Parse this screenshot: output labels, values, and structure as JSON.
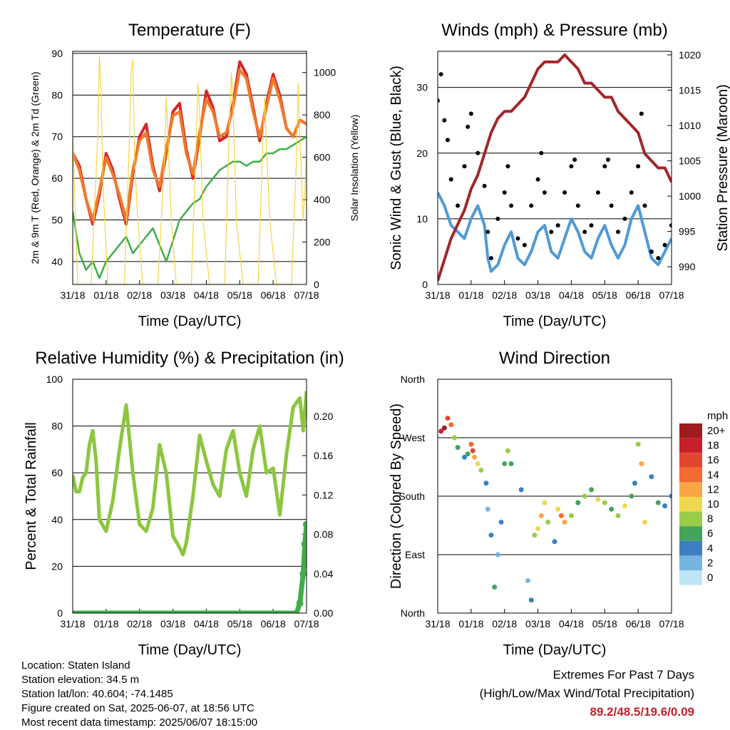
{
  "chart_data": [
    {
      "type": "line",
      "title": "Temperature (F)",
      "xlabel": "Time (Day/UTC)",
      "ylabel": "2m & 9m T (Red, Orange) & 2m Td (Green)",
      "y2label": "Solar Insolation (Yellow)",
      "x_ticks": [
        "31/18",
        "01/18",
        "02/18",
        "03/18",
        "04/18",
        "05/18",
        "06/18",
        "07/18"
      ],
      "ylim": [
        34.5,
        90.5
      ],
      "y_ticks": [
        40,
        50,
        60,
        70,
        80,
        90
      ],
      "y2lim": [
        0,
        1100
      ],
      "y2_ticks": [
        0,
        200,
        400,
        600,
        800,
        1000
      ],
      "grid": true,
      "series": [
        {
          "name": "2m T",
          "color": "#d7262b",
          "axis": "left",
          "x": [
            0,
            0.2,
            0.4,
            0.6,
            0.8,
            1,
            1.2,
            1.4,
            1.6,
            1.8,
            2,
            2.2,
            2.4,
            2.6,
            2.8,
            3,
            3.2,
            3.4,
            3.6,
            3.8,
            4,
            4.2,
            4.4,
            4.6,
            4.8,
            5,
            5.2,
            5.4,
            5.6,
            5.8,
            6,
            6.2,
            6.4,
            6.6,
            6.8,
            7
          ],
          "values": [
            66,
            63,
            55,
            49,
            56,
            66,
            62,
            55,
            49,
            61,
            70,
            73,
            63,
            57,
            66,
            76,
            78,
            67,
            60,
            70,
            81,
            77,
            69,
            70,
            78,
            88,
            85,
            77,
            69,
            78,
            85,
            80,
            72,
            70,
            74,
            73
          ]
        },
        {
          "name": "9m T",
          "color": "#f07a2a",
          "axis": "left",
          "x": [
            0,
            0.2,
            0.4,
            0.6,
            0.8,
            1,
            1.2,
            1.4,
            1.6,
            1.8,
            2,
            2.2,
            2.4,
            2.6,
            2.8,
            3,
            3.2,
            3.4,
            3.6,
            3.8,
            4,
            4.2,
            4.4,
            4.6,
            4.8,
            5,
            5.2,
            5.4,
            5.6,
            5.8,
            6,
            6.2,
            6.4,
            6.6,
            6.8,
            7
          ],
          "values": [
            66,
            62,
            55,
            50,
            57,
            65,
            61,
            56,
            50,
            62,
            69,
            71,
            62,
            58,
            67,
            75,
            76,
            66,
            61,
            71,
            79,
            76,
            70,
            71,
            77,
            86,
            84,
            76,
            70,
            77,
            84,
            79,
            72,
            70,
            74,
            73
          ]
        },
        {
          "name": "2m Td",
          "color": "#3fae49",
          "axis": "left",
          "x": [
            0,
            0.2,
            0.4,
            0.6,
            0.8,
            1,
            1.2,
            1.4,
            1.6,
            1.8,
            2,
            2.2,
            2.4,
            2.6,
            2.8,
            3,
            3.2,
            3.4,
            3.6,
            3.8,
            4,
            4.2,
            4.4,
            4.6,
            4.8,
            5,
            5.2,
            5.4,
            5.6,
            5.8,
            6,
            6.2,
            6.4,
            6.6,
            6.8,
            7
          ],
          "values": [
            52,
            42,
            38,
            40,
            36,
            40,
            42,
            44,
            46,
            42,
            44,
            46,
            48,
            44,
            40,
            45,
            50,
            52,
            54,
            55,
            58,
            60,
            62,
            63,
            64,
            64,
            63,
            64,
            64,
            66,
            66,
            67,
            67,
            68,
            69,
            70
          ]
        },
        {
          "name": "Solar Insolation",
          "color": "#f5d547",
          "axis": "right",
          "x": [
            0,
            0.15,
            0.3,
            0.55,
            0.75,
            0.8,
            0.85,
            0.9,
            1.05,
            1.2,
            1.55,
            1.7,
            1.75,
            1.8,
            1.85,
            1.95,
            2.1,
            2.55,
            2.75,
            2.8,
            2.85,
            2.95,
            3.1,
            3.55,
            3.7,
            3.75,
            3.8,
            3.9,
            4.1,
            4.55,
            4.7,
            4.75,
            4.8,
            4.9,
            5.1,
            5.55,
            5.7,
            5.75,
            5.8,
            5.9,
            6.1,
            6.55,
            6.7,
            6.75,
            6.8,
            6.9,
            7
          ],
          "values": [
            700,
            0,
            0,
            0,
            700,
            1080,
            900,
            500,
            0,
            0,
            0,
            700,
            1000,
            1060,
            600,
            300,
            0,
            0,
            600,
            880,
            700,
            300,
            0,
            0,
            700,
            950,
            800,
            300,
            0,
            0,
            800,
            1000,
            850,
            300,
            0,
            0,
            700,
            880,
            650,
            300,
            0,
            0,
            600,
            950,
            700,
            300,
            600
          ]
        }
      ]
    },
    {
      "type": "line",
      "title": "Winds (mph) & Pressure (mb)",
      "xlabel": "Time (Day/UTC)",
      "ylabel": "Sonic Wind & Gust (Blue, Black)",
      "y2label": "Station Pressure (Maroon)",
      "x_ticks": [
        "31/18",
        "01/18",
        "02/18",
        "03/18",
        "04/18",
        "05/18",
        "06/18",
        "07/18"
      ],
      "ylim": [
        0,
        35.5
      ],
      "y_ticks": [
        0,
        10,
        20,
        30
      ],
      "y2lim": [
        987.5,
        1020.5
      ],
      "y2_ticks": [
        990,
        995,
        1000,
        1005,
        1010,
        1015,
        1020
      ],
      "grid": true,
      "series": [
        {
          "name": "Sonic Wind",
          "color": "#4f9ad6",
          "axis": "left",
          "x": [
            0,
            0.2,
            0.4,
            0.6,
            0.8,
            1,
            1.2,
            1.4,
            1.5,
            1.6,
            1.8,
            2,
            2.2,
            2.4,
            2.6,
            2.8,
            3,
            3.2,
            3.4,
            3.6,
            3.8,
            4,
            4.2,
            4.4,
            4.6,
            4.8,
            5,
            5.2,
            5.4,
            5.6,
            5.8,
            6,
            6.2,
            6.4,
            6.6,
            6.8,
            7
          ],
          "values": [
            14,
            12,
            9,
            8,
            7,
            10,
            12,
            9,
            4,
            2,
            3,
            6,
            8,
            4,
            3,
            5,
            8,
            9,
            5,
            4,
            7,
            10,
            8,
            5,
            4,
            7,
            9,
            6,
            4,
            6,
            10,
            12,
            8,
            4,
            3,
            5,
            7
          ]
        },
        {
          "name": "Gust",
          "color": "#000000",
          "axis": "left",
          "x": [
            0,
            0.1,
            0.2,
            0.3,
            0.4,
            0.6,
            0.8,
            0.9,
            1,
            1.2,
            1.4,
            1.5,
            1.6,
            1.8,
            2,
            2.1,
            2.2,
            2.4,
            2.6,
            2.8,
            3,
            3.1,
            3.2,
            3.4,
            3.6,
            3.8,
            4,
            4.1,
            4.2,
            4.4,
            4.6,
            4.8,
            5,
            5.1,
            5.2,
            5.4,
            5.6,
            5.8,
            6,
            6.1,
            6.2,
            6.4,
            6.6,
            6.8,
            7
          ],
          "values": [
            28,
            32,
            25,
            22,
            16,
            12,
            18,
            24,
            26,
            20,
            15,
            8,
            4,
            10,
            14,
            18,
            12,
            7,
            6,
            12,
            16,
            20,
            14,
            8,
            9,
            14,
            18,
            19,
            12,
            8,
            9,
            14,
            18,
            19,
            12,
            8,
            10,
            14,
            18,
            26,
            12,
            5,
            4,
            6,
            9
          ]
        },
        {
          "name": "Station Pressure",
          "color": "#a3262a",
          "axis": "right",
          "x": [
            0,
            0.2,
            0.4,
            0.6,
            0.8,
            1,
            1.2,
            1.4,
            1.6,
            1.8,
            2,
            2.2,
            2.4,
            2.6,
            2.8,
            3,
            3.2,
            3.4,
            3.6,
            3.8,
            4,
            4.2,
            4.4,
            4.6,
            4.8,
            5,
            5.2,
            5.4,
            5.6,
            5.8,
            6,
            6.2,
            6.4,
            6.6,
            6.8,
            7
          ],
          "values": [
            988,
            991,
            994,
            996,
            998,
            1001,
            1003,
            1006,
            1009,
            1011,
            1012,
            1012,
            1013,
            1014,
            1016,
            1018,
            1019,
            1019,
            1019,
            1020,
            1019,
            1018,
            1016,
            1016,
            1015,
            1014,
            1014,
            1012,
            1011,
            1010,
            1009,
            1006,
            1005,
            1004,
            1004,
            1002
          ]
        }
      ]
    },
    {
      "type": "line",
      "title": "Relative Humidity (%) & Precipitation (in)",
      "xlabel": "Time (Day/UTC)",
      "ylabel": "Percent & Total Rainfall",
      "x_ticks": [
        "31/18",
        "01/18",
        "02/18",
        "03/18",
        "04/18",
        "05/18",
        "06/18",
        "07/18"
      ],
      "ylim": [
        0,
        100
      ],
      "y_ticks": [
        0,
        20,
        40,
        60,
        80,
        100
      ],
      "y2lim": [
        0,
        0.2375
      ],
      "y2_ticks": [
        "0.00",
        "0.04",
        "0.08",
        "0.12",
        "0.16",
        "0.20"
      ],
      "grid": true,
      "series": [
        {
          "name": "Relative Humidity",
          "color": "#8cc63f",
          "axis": "left",
          "x": [
            0,
            0.1,
            0.2,
            0.3,
            0.4,
            0.5,
            0.6,
            0.7,
            0.8,
            1,
            1.2,
            1.4,
            1.6,
            1.8,
            2,
            2.2,
            2.4,
            2.6,
            2.8,
            3,
            3.2,
            3.3,
            3.4,
            3.6,
            3.8,
            4,
            4.2,
            4.4,
            4.6,
            4.8,
            5,
            5.2,
            5.4,
            5.6,
            5.8,
            6,
            6.2,
            6.4,
            6.6,
            6.8,
            6.9,
            7
          ],
          "values": [
            59,
            52,
            52,
            58,
            60,
            72,
            78,
            65,
            40,
            35,
            48,
            70,
            89,
            60,
            38,
            35,
            45,
            72,
            60,
            33,
            28,
            25,
            30,
            50,
            76,
            65,
            55,
            50,
            70,
            78,
            60,
            50,
            70,
            80,
            60,
            62,
            42,
            68,
            88,
            92,
            78,
            95
          ]
        },
        {
          "name": "Total Precipitation",
          "color": "#3fae49",
          "axis": "right",
          "x": [
            0,
            1,
            2,
            3,
            4,
            5,
            6,
            6.7,
            6.8,
            6.9,
            6.95,
            7
          ],
          "values": [
            0,
            0,
            0,
            0,
            0,
            0,
            0,
            0,
            0.01,
            0.04,
            0.07,
            0.09
          ]
        }
      ]
    },
    {
      "type": "scatter",
      "title": "Wind Direction",
      "xlabel": "Time (Day/UTC)",
      "ylabel": "Direction (Colored By Speed)",
      "x_ticks": [
        "31/18",
        "01/18",
        "02/18",
        "03/18",
        "04/18",
        "05/18",
        "06/18",
        "07/18"
      ],
      "y_ticks": [
        "North",
        "East",
        "South",
        "West",
        "North"
      ],
      "ylim": [
        0,
        360
      ],
      "grid": true,
      "legend": {
        "title": "mph",
        "position": "right",
        "labels": [
          "20+",
          "18",
          "16",
          "14",
          "12",
          "10",
          "8",
          "6",
          "4",
          "2",
          "0"
        ],
        "colors": [
          "#9e1b1f",
          "#c8202a",
          "#e0472f",
          "#f26b30",
          "#fba545",
          "#efd84f",
          "#9acc47",
          "#44a35a",
          "#3d7fc0",
          "#78b4e2",
          "#bfe5f7"
        ]
      },
      "series": [
        {
          "name": "direction",
          "x": [
            0.1,
            0.2,
            0.3,
            0.4,
            0.5,
            0.6,
            0.8,
            0.9,
            1.0,
            1.05,
            1.1,
            1.2,
            1.3,
            1.45,
            1.5,
            1.6,
            1.7,
            1.8,
            1.9,
            2.0,
            2.1,
            2.2,
            2.5,
            2.7,
            2.8,
            2.9,
            3.0,
            3.1,
            3.2,
            3.3,
            3.5,
            3.6,
            3.7,
            3.8,
            4.0,
            4.2,
            4.4,
            4.6,
            4.8,
            5.0,
            5.2,
            5.4,
            5.6,
            5.8,
            5.9,
            6.0,
            6.1,
            6.2,
            6.4,
            6.6,
            6.8,
            7.0
          ],
          "y": [
            280,
            285,
            300,
            290,
            270,
            255,
            240,
            245,
            260,
            250,
            240,
            230,
            220,
            200,
            160,
            120,
            40,
            90,
            140,
            230,
            250,
            230,
            190,
            50,
            20,
            120,
            130,
            150,
            170,
            140,
            110,
            160,
            150,
            140,
            150,
            170,
            180,
            190,
            175,
            170,
            160,
            150,
            165,
            180,
            200,
            260,
            230,
            140,
            210,
            170,
            165,
            180
          ],
          "speed": [
            18,
            20,
            16,
            14,
            8,
            6,
            4,
            6,
            14,
            16,
            12,
            10,
            8,
            4,
            2,
            4,
            6,
            2,
            4,
            6,
            8,
            6,
            4,
            2,
            4,
            8,
            10,
            12,
            10,
            8,
            4,
            10,
            14,
            12,
            8,
            6,
            8,
            6,
            10,
            8,
            6,
            8,
            10,
            6,
            4,
            8,
            12,
            10,
            4,
            6,
            4,
            4
          ]
        }
      ]
    }
  ],
  "info": {
    "location": "Location: Staten Island",
    "elevation": "Station elevation: 34.5 m",
    "latlon": "Station lat/lon: 40.604; -74.1485",
    "created": "Figure created on Sat, 2025-06-07, at 18:56 UTC",
    "recent": "Most recent data timestamp: 2025/06/07 18:15:00"
  },
  "extremes": {
    "heading": "Extremes For Past 7 Days",
    "subheading": "(High/Low/Max Wind/Total Precipitation)",
    "values": "89.2/48.5/19.6/0.09",
    "color": "#c8202a"
  }
}
